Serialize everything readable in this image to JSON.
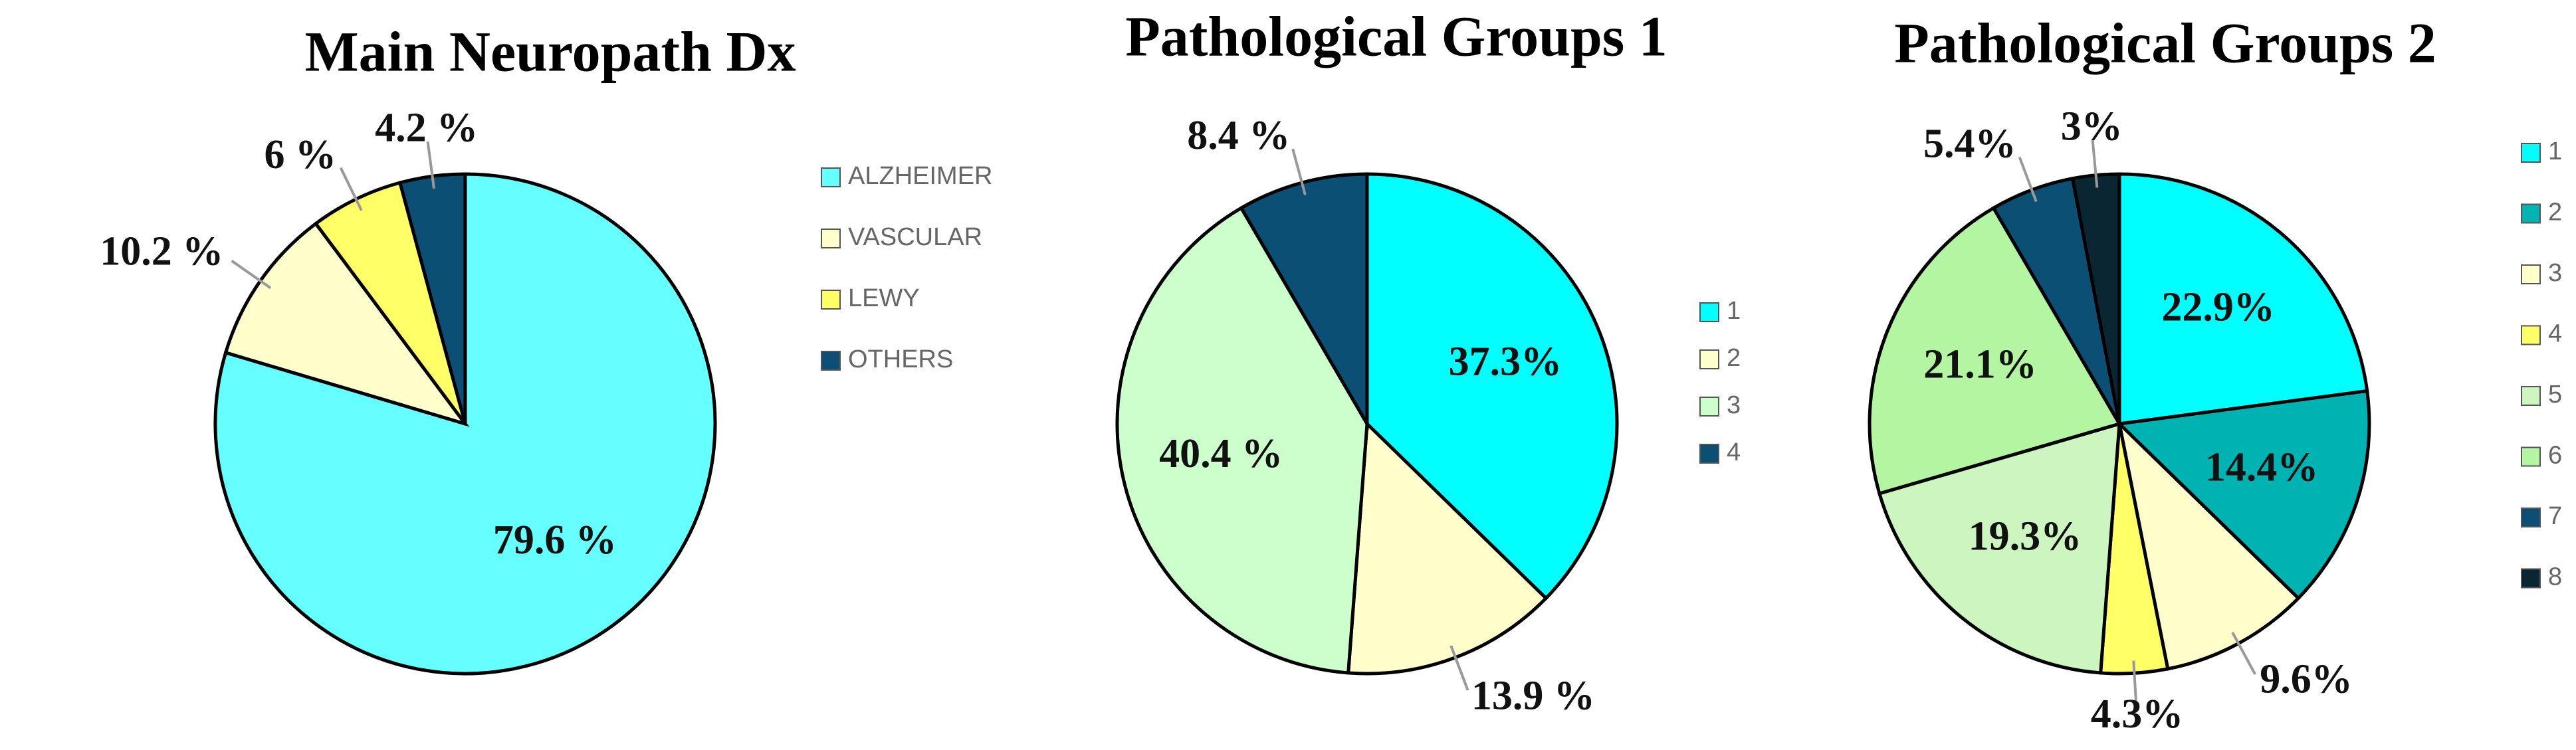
{
  "chart_data": [
    {
      "type": "pie",
      "title": "Main Neuropath Dx",
      "categories": [
        "ALZHEIMER",
        "VASCULAR",
        "LEWY",
        "OTHERS"
      ],
      "values": [
        79.6,
        10.2,
        6,
        4.2
      ],
      "value_labels": [
        "79.6 %",
        "10.2 %",
        "6 %",
        "4.2 %"
      ],
      "colors": [
        "#66ffff",
        "#ffffcc",
        "#ffff66",
        "#0b4f75"
      ]
    },
    {
      "type": "pie",
      "title": "Pathological Groups 1",
      "categories": [
        "1",
        "2",
        "3",
        "4"
      ],
      "values": [
        37.3,
        13.9,
        40.4,
        8.4
      ],
      "value_labels": [
        "37.3%",
        "13.9 %",
        "40.4 %",
        "8.4 %"
      ],
      "colors": [
        "#00ffff",
        "#ffffcc",
        "#ccffcc",
        "#0b4f75"
      ]
    },
    {
      "type": "pie",
      "title": "Pathological Groups 2",
      "categories": [
        "1",
        "2",
        "3",
        "4",
        "5",
        "6",
        "7",
        "8"
      ],
      "values": [
        22.9,
        14.4,
        9.6,
        4.3,
        19.3,
        21.1,
        5.4,
        3
      ],
      "value_labels": [
        "22.9%",
        "14.4%",
        "9.6%",
        "4.3%",
        "19.3%",
        "21.1%",
        "5.4%",
        "3%"
      ],
      "colors": [
        "#00ffff",
        "#00b3b3",
        "#ffffcc",
        "#ffff66",
        "#ccf5c0",
        "#b3f5a0",
        "#0b4f75",
        "#0a2633"
      ]
    }
  ]
}
